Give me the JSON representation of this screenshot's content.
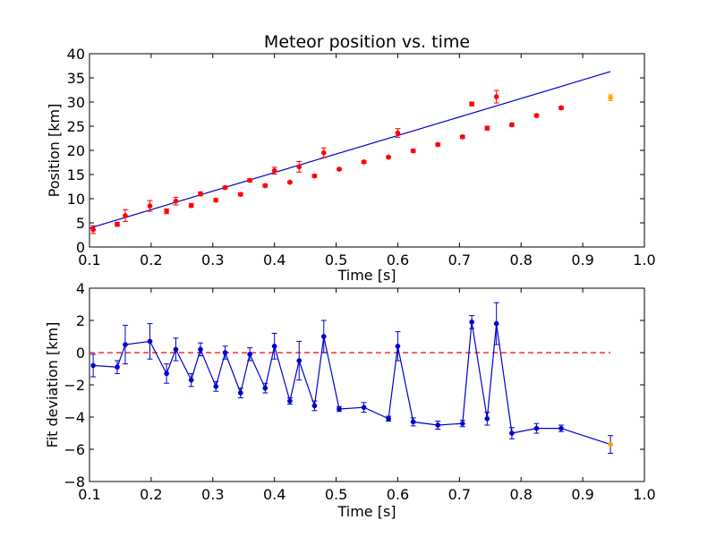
{
  "chart_data": [
    {
      "type": "scatter",
      "title": "Meteor position vs. time",
      "xlabel": "Time [s]",
      "ylabel": "Position [km]",
      "xlim": [
        0.1,
        1.0
      ],
      "ylim": [
        0,
        40
      ],
      "xticks": [
        "0.1",
        "0.2",
        "0.3",
        "0.4",
        "0.5",
        "0.6",
        "0.7",
        "0.8",
        "0.9",
        "1.0"
      ],
      "yticks": [
        "0",
        "5",
        "10",
        "15",
        "20",
        "25",
        "30",
        "35",
        "40"
      ],
      "grid": false,
      "point_color": "#ff0000",
      "last_point_color": "#ffa500",
      "line_color": "#0000cc",
      "fit_line": {
        "x": [
          0.1,
          0.945
        ],
        "y": [
          3.9,
          36.3
        ]
      },
      "points": [
        {
          "x": 0.106,
          "y": 3.6,
          "err": 0.8
        },
        {
          "x": 0.145,
          "y": 4.7,
          "err": 0.4
        },
        {
          "x": 0.158,
          "y": 6.5,
          "err": 1.2
        },
        {
          "x": 0.198,
          "y": 8.5,
          "err": 1.1
        },
        {
          "x": 0.225,
          "y": 7.4,
          "err": 0.5
        },
        {
          "x": 0.24,
          "y": 9.5,
          "err": 0.8
        },
        {
          "x": 0.265,
          "y": 8.6,
          "err": 0.4
        },
        {
          "x": 0.28,
          "y": 11.0,
          "err": 0.4
        },
        {
          "x": 0.305,
          "y": 9.7,
          "err": 0.3
        },
        {
          "x": 0.32,
          "y": 12.3,
          "err": 0.3
        },
        {
          "x": 0.345,
          "y": 10.9,
          "err": 0.3
        },
        {
          "x": 0.36,
          "y": 13.8,
          "err": 0.3
        },
        {
          "x": 0.385,
          "y": 12.7,
          "err": 0.3
        },
        {
          "x": 0.4,
          "y": 15.8,
          "err": 0.7
        },
        {
          "x": 0.425,
          "y": 13.4,
          "err": 0.2
        },
        {
          "x": 0.44,
          "y": 16.6,
          "err": 1.1
        },
        {
          "x": 0.465,
          "y": 14.7,
          "err": 0.3
        },
        {
          "x": 0.48,
          "y": 19.5,
          "err": 1.0
        },
        {
          "x": 0.505,
          "y": 16.1,
          "err": 0.2
        },
        {
          "x": 0.545,
          "y": 17.6,
          "err": 0.3
        },
        {
          "x": 0.585,
          "y": 18.6,
          "err": 0.2
        },
        {
          "x": 0.6,
          "y": 23.6,
          "err": 0.9
        },
        {
          "x": 0.625,
          "y": 19.9,
          "err": 0.3
        },
        {
          "x": 0.665,
          "y": 21.2,
          "err": 0.3
        },
        {
          "x": 0.705,
          "y": 22.8,
          "err": 0.3
        },
        {
          "x": 0.72,
          "y": 29.6,
          "err": 0.4
        },
        {
          "x": 0.745,
          "y": 24.6,
          "err": 0.4
        },
        {
          "x": 0.76,
          "y": 31.1,
          "err": 1.3
        },
        {
          "x": 0.785,
          "y": 25.3,
          "err": 0.3
        },
        {
          "x": 0.825,
          "y": 27.2,
          "err": 0.3
        },
        {
          "x": 0.865,
          "y": 28.8,
          "err": 0.3
        },
        {
          "x": 0.945,
          "y": 30.9,
          "err": 0.6
        }
      ]
    },
    {
      "type": "line",
      "title": "",
      "xlabel": "Time [s]",
      "ylabel": "Fit deviation [km]",
      "xlim": [
        0.1,
        1.0
      ],
      "ylim": [
        -8,
        4
      ],
      "xticks": [
        "0.1",
        "0.2",
        "0.3",
        "0.4",
        "0.5",
        "0.6",
        "0.7",
        "0.8",
        "0.9",
        "1.0"
      ],
      "yticks": [
        "−8",
        "−6",
        "−4",
        "−2",
        "0",
        "2",
        "4"
      ],
      "grid": false,
      "line_color": "#0000cc",
      "last_point_color": "#ffa500",
      "zero_line_color": "#ff0000",
      "zero_line": {
        "x": [
          0.1,
          0.945
        ],
        "y": 0
      },
      "points": [
        {
          "x": 0.106,
          "y": -0.8,
          "err": 0.7
        },
        {
          "x": 0.145,
          "y": -0.9,
          "err": 0.4
        },
        {
          "x": 0.158,
          "y": 0.5,
          "err": 1.2
        },
        {
          "x": 0.198,
          "y": 0.7,
          "err": 1.1
        },
        {
          "x": 0.225,
          "y": -1.3,
          "err": 0.6
        },
        {
          "x": 0.24,
          "y": 0.2,
          "err": 0.7
        },
        {
          "x": 0.265,
          "y": -1.7,
          "err": 0.4
        },
        {
          "x": 0.28,
          "y": 0.2,
          "err": 0.4
        },
        {
          "x": 0.305,
          "y": -2.1,
          "err": 0.3
        },
        {
          "x": 0.32,
          "y": 0.0,
          "err": 0.4
        },
        {
          "x": 0.345,
          "y": -2.5,
          "err": 0.3
        },
        {
          "x": 0.36,
          "y": -0.1,
          "err": 0.4
        },
        {
          "x": 0.385,
          "y": -2.2,
          "err": 0.3
        },
        {
          "x": 0.4,
          "y": 0.4,
          "err": 0.8
        },
        {
          "x": 0.425,
          "y": -3.0,
          "err": 0.2
        },
        {
          "x": 0.44,
          "y": -0.5,
          "err": 1.2
        },
        {
          "x": 0.465,
          "y": -3.3,
          "err": 0.3
        },
        {
          "x": 0.48,
          "y": 1.0,
          "err": 1.0
        },
        {
          "x": 0.505,
          "y": -3.5,
          "err": 0.15
        },
        {
          "x": 0.545,
          "y": -3.4,
          "err": 0.3
        },
        {
          "x": 0.585,
          "y": -4.1,
          "err": 0.15
        },
        {
          "x": 0.6,
          "y": 0.4,
          "err": 0.9
        },
        {
          "x": 0.625,
          "y": -4.3,
          "err": 0.25
        },
        {
          "x": 0.665,
          "y": -4.5,
          "err": 0.25
        },
        {
          "x": 0.705,
          "y": -4.4,
          "err": 0.2
        },
        {
          "x": 0.72,
          "y": 1.9,
          "err": 0.4
        },
        {
          "x": 0.745,
          "y": -4.1,
          "err": 0.4
        },
        {
          "x": 0.76,
          "y": 1.8,
          "err": 1.3
        },
        {
          "x": 0.785,
          "y": -5.0,
          "err": 0.35
        },
        {
          "x": 0.825,
          "y": -4.7,
          "err": 0.3
        },
        {
          "x": 0.865,
          "y": -4.7,
          "err": 0.2
        },
        {
          "x": 0.945,
          "y": -5.7,
          "err": 0.55
        }
      ]
    }
  ]
}
